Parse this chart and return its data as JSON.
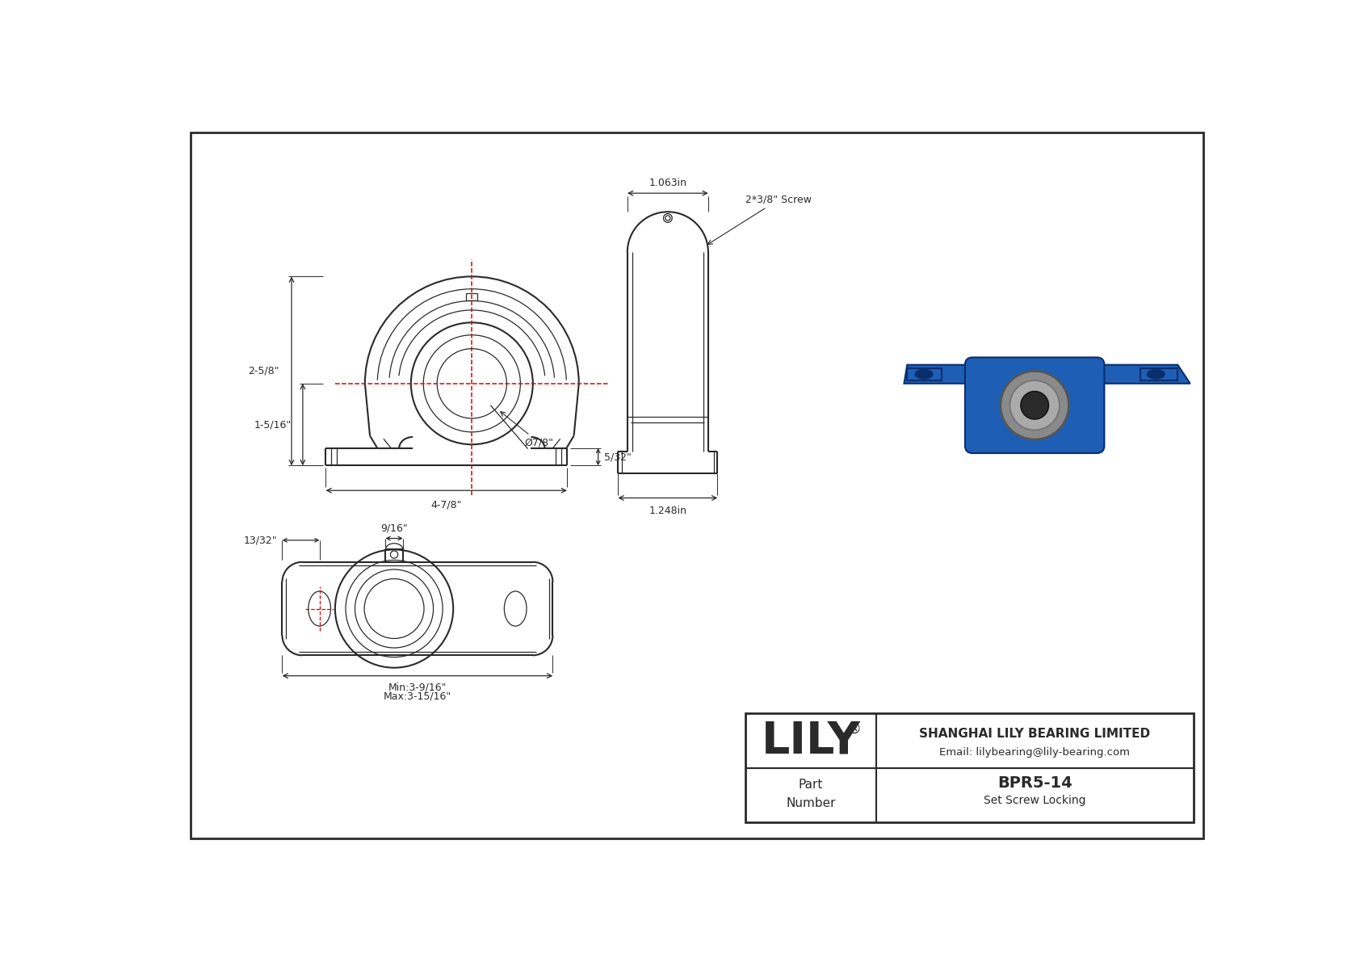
{
  "bg_color": "#ffffff",
  "line_color": "#2a2a2a",
  "red_color": "#e00000",
  "dim_25_8": "2-5/8\"",
  "dim_15_16": "1-5/16\"",
  "dim_47_8": "4-7/8\"",
  "dim_7_8": "Ø7/8\"",
  "dim_5_32": "5/32\"",
  "dim_2_3_8_screw": "2*3/8\" Screw",
  "dim_1_063": "1.063in",
  "dim_1_248": "1.248in",
  "dim_9_16": "9/16\"",
  "dim_13_32": "13/32\"",
  "dim_min": "Min:3-9/16\"",
  "dim_max": "Max:3-15/16\"",
  "title_company": "SHANGHAI LILY BEARING LIMITED",
  "title_email": "Email: lilybearing@lily-bearing.com",
  "part_number": "BPR5-14",
  "part_type": "Set Screw Locking",
  "brand": "LILY"
}
